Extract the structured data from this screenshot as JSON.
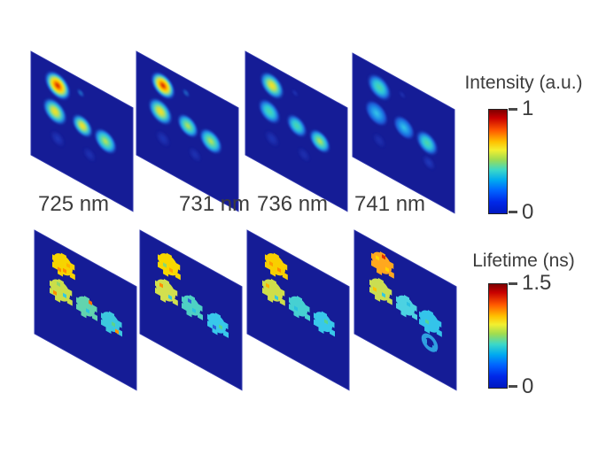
{
  "rows": [
    {
      "name": "intensity",
      "colorbar": {
        "title": "Intensity (a.u.)",
        "max_label": "1",
        "min_label": "0"
      },
      "panels": [
        {
          "label": "725 nm",
          "blobs": [
            {
              "x": 30,
              "y": 22,
              "r": 15,
              "level": "red"
            },
            {
              "x": 56,
              "y": 16,
              "r": 4,
              "level": "cyan",
              "opacity": 0.5
            },
            {
              "x": 27,
              "y": 53,
              "r": 14,
              "level": "yellow"
            },
            {
              "x": 58,
              "y": 52,
              "r": 12,
              "level": "yellow"
            },
            {
              "x": 84,
              "y": 55,
              "r": 13,
              "level": "yellowgreen"
            },
            {
              "x": 30,
              "y": 82,
              "r": 9,
              "level": "blue",
              "opacity": 0.55
            },
            {
              "x": 66,
              "y": 80,
              "r": 8,
              "level": "blue",
              "opacity": 0.45
            }
          ]
        },
        {
          "label": "731 nm",
          "blobs": [
            {
              "x": 30,
              "y": 22,
              "r": 14,
              "level": "red"
            },
            {
              "x": 56,
              "y": 16,
              "r": 4,
              "level": "cyan",
              "opacity": 0.45
            },
            {
              "x": 27,
              "y": 53,
              "r": 14,
              "level": "yellow"
            },
            {
              "x": 58,
              "y": 52,
              "r": 12,
              "level": "yellowgreen"
            },
            {
              "x": 84,
              "y": 55,
              "r": 13,
              "level": "yellowgreen"
            },
            {
              "x": 30,
              "y": 82,
              "r": 9,
              "level": "blue",
              "opacity": 0.5
            },
            {
              "x": 66,
              "y": 80,
              "r": 8,
              "level": "blue",
              "opacity": 0.45
            }
          ]
        },
        {
          "label": "736 nm",
          "blobs": [
            {
              "x": 30,
              "y": 22,
              "r": 14,
              "level": "yellow"
            },
            {
              "x": 56,
              "y": 16,
              "r": 4,
              "level": "blue",
              "opacity": 0.5
            },
            {
              "x": 27,
              "y": 53,
              "r": 13,
              "level": "green"
            },
            {
              "x": 58,
              "y": 52,
              "r": 12,
              "level": "green"
            },
            {
              "x": 84,
              "y": 55,
              "r": 12,
              "level": "yellowgreen"
            },
            {
              "x": 30,
              "y": 82,
              "r": 9,
              "level": "blue",
              "opacity": 0.5
            },
            {
              "x": 66,
              "y": 80,
              "r": 8,
              "level": "blue",
              "opacity": 0.4
            }
          ]
        },
        {
          "label": "741 nm",
          "blobs": [
            {
              "x": 30,
              "y": 22,
              "r": 14,
              "level": "green"
            },
            {
              "x": 56,
              "y": 16,
              "r": 4,
              "level": "blue",
              "opacity": 0.45
            },
            {
              "x": 27,
              "y": 53,
              "r": 13,
              "level": "cyan"
            },
            {
              "x": 58,
              "y": 52,
              "r": 12,
              "level": "cyan"
            },
            {
              "x": 84,
              "y": 55,
              "r": 13,
              "level": "green"
            },
            {
              "x": 86,
              "y": 76,
              "r": 8,
              "level": "blue",
              "opacity": 0.6
            },
            {
              "x": 30,
              "y": 82,
              "r": 8,
              "level": "blue",
              "opacity": 0.4
            }
          ]
        }
      ]
    },
    {
      "name": "lifetime",
      "colorbar": {
        "title": "Lifetime (ns)",
        "max_label": "1.5",
        "min_label": "0"
      },
      "panels": [
        {
          "label": "",
          "blobs": [
            {
              "x": 32,
              "y": 21,
              "r": 11,
              "fill": "#f6d400",
              "specks": [
                [
                  "#ff8a00",
                  2,
                  6
                ],
                [
                  "#ff8a00",
                  -4,
                  8
                ],
                [
                  "#ffb000",
                  6,
                  -2
                ]
              ]
            },
            {
              "x": 29,
              "y": 52,
              "r": 11,
              "fill": "#cade4a",
              "specks": [
                [
                  "#ff8a00",
                  -6,
                  6
                ],
                [
                  "#35c8de",
                  5,
                  3
                ],
                [
                  "#8ad870",
                  -2,
                  -6
                ]
              ]
            },
            {
              "x": 58,
              "y": 54,
              "r": 10,
              "fill": "#62d4ae",
              "specks": [
                [
                  "#ff7000",
                  5,
                  -7
                ],
                [
                  "#2cc4de",
                  2,
                  4
                ]
              ]
            },
            {
              "x": 86,
              "y": 56,
              "r": 10,
              "fill": "#3cc8de",
              "specks": [
                [
                  "#5ad48c",
                  3,
                  1
                ],
                [
                  "#ff9000",
                  7,
                  7
                ]
              ]
            }
          ]
        },
        {
          "label": "",
          "blobs": [
            {
              "x": 32,
              "y": 21,
              "r": 11,
              "fill": "#f8d800",
              "specks": [
                [
                  "#ffa300",
                  3,
                  5
                ],
                [
                  "#8ad870",
                  -4,
                  3
                ]
              ]
            },
            {
              "x": 29,
              "y": 52,
              "r": 11,
              "fill": "#d2e04e",
              "specks": [
                [
                  "#35c8de",
                  5,
                  5
                ],
                [
                  "#ff9000",
                  -5,
                  -3
                ]
              ]
            },
            {
              "x": 58,
              "y": 53,
              "r": 10,
              "fill": "#4ed0c4",
              "specks": [
                [
                  "#2cc0e0",
                  3,
                  4
                ],
                [
                  "#2a60d8",
                  -2,
                  -4
                ]
              ]
            },
            {
              "x": 87,
              "y": 57,
              "r": 10,
              "fill": "#38c8ea",
              "specks": [
                [
                  "#56d490",
                  4,
                  2
                ],
                [
                  "#2a60d8",
                  -3,
                  6
                ]
              ]
            }
          ]
        },
        {
          "label": "",
          "blobs": [
            {
              "x": 32,
              "y": 21,
              "r": 11,
              "fill": "#f8cf00",
              "specks": [
                [
                  "#ff8a00",
                  4,
                  4
                ],
                [
                  "#ff9c00",
                  -5,
                  2
                ]
              ]
            },
            {
              "x": 29,
              "y": 52,
              "r": 11,
              "fill": "#cede4a",
              "specks": [
                [
                  "#35c8de",
                  4,
                  6
                ],
                [
                  "#ffb000",
                  -6,
                  -2
                ]
              ]
            },
            {
              "x": 58,
              "y": 54,
              "r": 10,
              "fill": "#46d0d2",
              "specks": [
                [
                  "#2cc0e0",
                  -3,
                  4
                ]
              ]
            },
            {
              "x": 86,
              "y": 56,
              "r": 10,
              "fill": "#38c8ea",
              "specks": [
                [
                  "#56d490",
                  3,
                  -2
                ]
              ]
            }
          ]
        },
        {
          "label": "",
          "blobs": [
            {
              "x": 31,
              "y": 20,
              "r": 11,
              "fill": "#ffa81e",
              "specks": [
                [
                  "#ffd800",
                  -5,
                  -3
                ],
                [
                  "#e03000",
                  2,
                  -8
                ],
                [
                  "#ffd800",
                  6,
                  4
                ]
              ]
            },
            {
              "x": 29,
              "y": 51,
              "r": 11,
              "fill": "#cade52",
              "specks": [
                [
                  "#35c8de",
                  4,
                  4
                ],
                [
                  "#ffc400",
                  -6,
                  3
                ]
              ]
            },
            {
              "x": 58,
              "y": 53,
              "r": 10,
              "fill": "#4cd2e2",
              "specks": [
                [
                  "#2cc0e0",
                  3,
                  -3
                ]
              ]
            },
            {
              "x": 85,
              "y": 56,
              "r": 11,
              "fill": "#34c4ea",
              "specks": [
                [
                  "#52d498",
                  -3,
                  2
                ]
              ]
            },
            {
              "x": 85,
              "y": 80,
              "r": 7,
              "ring": true,
              "fill": "#2f9fe0"
            }
          ]
        }
      ]
    }
  ],
  "colors": {
    "panel_bg": "#151c96",
    "panel_edge": "#3138ae",
    "text": "#3c3c3c",
    "jet": [
      [
        "#7d0000",
        0
      ],
      [
        "#c80000",
        8
      ],
      [
        "#ff5a00",
        20
      ],
      [
        "#ffc100",
        31
      ],
      [
        "#f2ef30",
        39
      ],
      [
        "#a0dc50",
        48
      ],
      [
        "#3cd8c8",
        58
      ],
      [
        "#00aaf0",
        68
      ],
      [
        "#0064ff",
        78
      ],
      [
        "#0028e8",
        89
      ],
      [
        "#0018c0",
        100
      ]
    ],
    "levels": {
      "red": [
        [
          "#bb1600",
          0
        ],
        [
          "#ee5500",
          0.16
        ],
        [
          "#ffae00",
          0.3
        ],
        [
          "#ffe600",
          0.42
        ],
        [
          "#a4dc52",
          0.55
        ],
        [
          "#2ec8e0",
          0.68
        ],
        [
          "#1d55dd",
          0.83
        ]
      ],
      "yellow": [
        [
          "#ffdf20",
          0
        ],
        [
          "#c0e14a",
          0.28
        ],
        [
          "#3ed0c8",
          0.52
        ],
        [
          "#1e7ce8",
          0.75
        ]
      ],
      "yellowgreen": [
        [
          "#cfe63c",
          0
        ],
        [
          "#62d89a",
          0.3
        ],
        [
          "#2cc4de",
          0.55
        ],
        [
          "#1e6ce4",
          0.78
        ]
      ],
      "green": [
        [
          "#52d8a0",
          0
        ],
        [
          "#2cc8dc",
          0.4
        ],
        [
          "#1e64e0",
          0.72
        ]
      ],
      "cyan": [
        [
          "#36cbe8",
          0
        ],
        [
          "#1e8ae8",
          0.48
        ],
        [
          "#1b4cd0",
          0.8
        ]
      ],
      "blue": [
        [
          "#2850d8",
          0
        ],
        [
          "#1c30b4",
          0.6
        ]
      ]
    }
  }
}
